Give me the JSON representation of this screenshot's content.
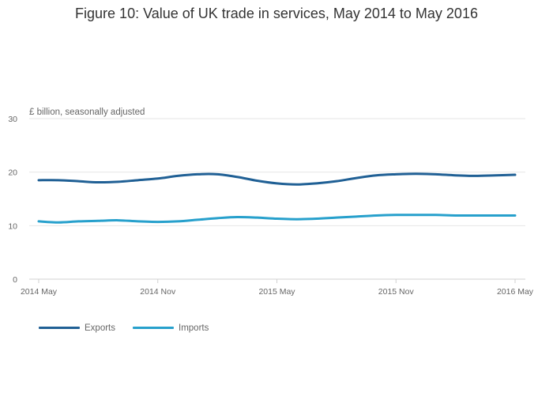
{
  "title": "Figure 10: Value of UK trade in services, May 2014 to May 2016",
  "chart_data": {
    "type": "line",
    "title": "Figure 10: Value of UK trade in services, May 2014 to May 2016",
    "ylabel": "£ billion, seasonally adjusted",
    "xlabel": "",
    "ylim": [
      0,
      30
    ],
    "yticks": [
      0,
      10,
      20,
      30
    ],
    "xtick_labels": [
      "2014 May",
      "2014 Nov",
      "2015 May",
      "2015 Nov",
      "2016 May"
    ],
    "x": [
      "2014 May",
      "2014 Jun",
      "2014 Jul",
      "2014 Aug",
      "2014 Sep",
      "2014 Oct",
      "2014 Nov",
      "2014 Dec",
      "2015 Jan",
      "2015 Feb",
      "2015 Mar",
      "2015 Apr",
      "2015 May",
      "2015 Jun",
      "2015 Jul",
      "2015 Aug",
      "2015 Sep",
      "2015 Oct",
      "2015 Nov",
      "2015 Dec",
      "2016 Jan",
      "2016 Feb",
      "2016 Mar",
      "2016 Apr",
      "2016 May"
    ],
    "series": [
      {
        "name": "Exports",
        "color": "#206095",
        "values": [
          18.5,
          18.5,
          18.3,
          18.1,
          18.2,
          18.5,
          18.8,
          19.3,
          19.6,
          19.6,
          19.1,
          18.4,
          17.9,
          17.7,
          17.9,
          18.3,
          18.9,
          19.4,
          19.6,
          19.7,
          19.6,
          19.4,
          19.3,
          19.4,
          19.5
        ]
      },
      {
        "name": "Imports",
        "color": "#27A0CC",
        "values": [
          10.8,
          10.6,
          10.8,
          10.9,
          11.0,
          10.8,
          10.7,
          10.8,
          11.1,
          11.4,
          11.6,
          11.5,
          11.3,
          11.2,
          11.3,
          11.5,
          11.7,
          11.9,
          12.0,
          12.0,
          12.0,
          11.9,
          11.9,
          11.9,
          11.9
        ]
      }
    ],
    "grid": true,
    "legend_position": "bottom-left"
  }
}
